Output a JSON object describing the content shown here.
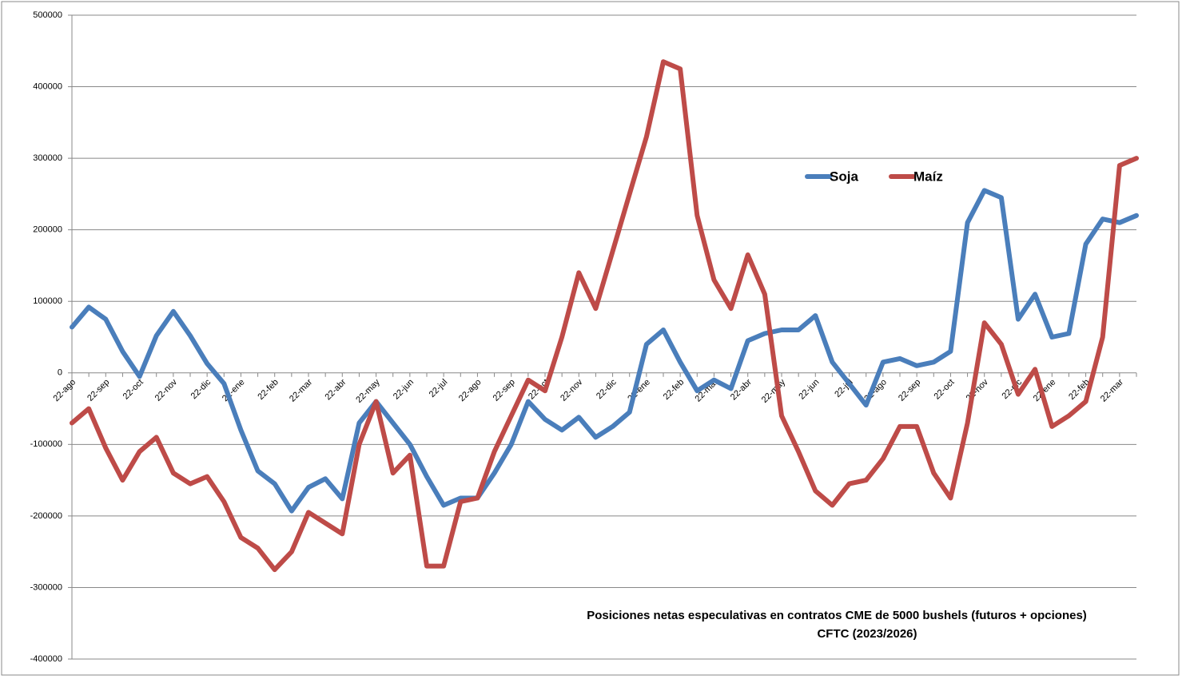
{
  "chart_data": {
    "type": "line",
    "title": "Posiciones netas especulativas en contratos CME de 5000 bushels (futuros + opciones)",
    "subtitle": "CFTC (2023/2026)",
    "categories": [
      "22-ago",
      null,
      "22-sep",
      null,
      "22-oct",
      null,
      "22-nov",
      null,
      "22-dic",
      null,
      "22-ene",
      null,
      "22-feb",
      null,
      "22-mar",
      null,
      "22-abr",
      null,
      "22-may",
      null,
      "22-jun",
      null,
      "22-jul",
      null,
      "22-ago",
      null,
      "22-sep",
      null,
      "22-oct",
      null,
      "22-nov",
      null,
      "22-dic",
      null,
      "22-ene",
      null,
      "22-feb",
      null,
      "22-mar",
      null,
      "22-abr",
      null,
      "22-may",
      null,
      "22-jun",
      null,
      "22-jul",
      null,
      "22-ago",
      null,
      "22-sep",
      null,
      "22-oct",
      null,
      "22-nov",
      null,
      "22-dic",
      null,
      "22-ene",
      null,
      "22-feb",
      null,
      "22-mar",
      null
    ],
    "series": [
      {
        "name": "Soja",
        "color": "#4a7ebb",
        "values": [
          64000,
          92000,
          75000,
          30000,
          -5000,
          52000,
          86000,
          52000,
          13000,
          -15000,
          -80000,
          -137000,
          -155000,
          -193000,
          -160000,
          -148000,
          -176000,
          -70000,
          -40000,
          -70000,
          -100000,
          -145000,
          -185000,
          -175000,
          -175000,
          -140000,
          -100000,
          -40000,
          -65000,
          -80000,
          -62000,
          -90000,
          -75000,
          -55000,
          40000,
          60000,
          15000,
          -25000,
          -10000,
          -22000,
          45000,
          55000,
          60000,
          60000,
          80000,
          15000,
          -15000,
          -45000,
          15000,
          20000,
          10000,
          15000,
          30000,
          210000,
          255000,
          245000,
          75000,
          110000,
          50000,
          55000,
          180000,
          215000,
          210000,
          220000
        ]
      },
      {
        "name": "Maíz",
        "color": "#be4b48",
        "values": [
          -70000,
          -50000,
          -105000,
          -150000,
          -110000,
          -90000,
          -140000,
          -155000,
          -145000,
          -180000,
          -230000,
          -245000,
          -275000,
          -250000,
          -195000,
          -210000,
          -225000,
          -100000,
          -40000,
          -140000,
          -115000,
          -270000,
          -270000,
          -180000,
          -175000,
          -110000,
          -60000,
          -10000,
          -25000,
          50000,
          140000,
          90000,
          170000,
          250000,
          330000,
          435000,
          425000,
          220000,
          130000,
          90000,
          165000,
          110000,
          -60000,
          -110000,
          -165000,
          -185000,
          -155000,
          -150000,
          -120000,
          -75000,
          -75000,
          -140000,
          -175000,
          -70000,
          70000,
          40000,
          -30000,
          5000,
          -75000,
          -60000,
          -40000,
          50000,
          290000,
          300000
        ]
      }
    ],
    "ylim": [
      -400000,
      500000
    ],
    "yticks": [
      -400000,
      -300000,
      -200000,
      -100000,
      0,
      100000,
      200000,
      300000,
      400000,
      500000
    ],
    "grid": true,
    "legend": "right"
  }
}
